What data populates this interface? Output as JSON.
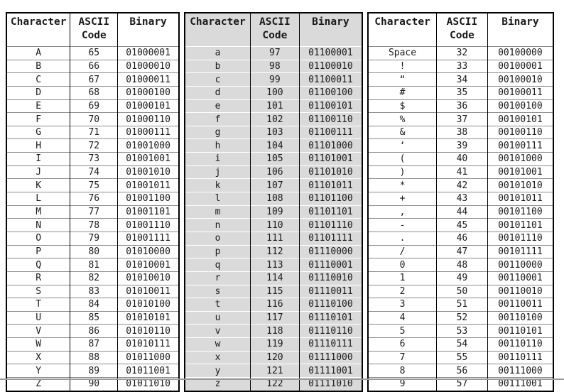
{
  "title": "ASCII code conversion table",
  "headers": {
    "character": "Character",
    "ascii_line1": "ASCII",
    "ascii_line2": "Code",
    "binary": "Binary"
  },
  "colors": {
    "background": "#ffffff",
    "text": "#1a1a1a",
    "table_border": "#000000",
    "row_line": "#8c8c8c",
    "shaded_cell_bg": "#dadada",
    "shaded_row_line": "#ffffff",
    "bottom_rule": "#9a9a9a"
  },
  "sections": [
    {
      "name": "uppercase-letters",
      "shaded": false,
      "rows": [
        [
          "A",
          "65",
          "01000001"
        ],
        [
          "B",
          "66",
          "01000010"
        ],
        [
          "C",
          "67",
          "01000011"
        ],
        [
          "D",
          "68",
          "01000100"
        ],
        [
          "E",
          "69",
          "01000101"
        ],
        [
          "F",
          "70",
          "01000110"
        ],
        [
          "G",
          "71",
          "01000111"
        ],
        [
          "H",
          "72",
          "01001000"
        ],
        [
          "I",
          "73",
          "01001001"
        ],
        [
          "J",
          "74",
          "01001010"
        ],
        [
          "K",
          "75",
          "01001011"
        ],
        [
          "L",
          "76",
          "01001100"
        ],
        [
          "M",
          "77",
          "01001101"
        ],
        [
          "N",
          "78",
          "01001110"
        ],
        [
          "O",
          "79",
          "01001111"
        ],
        [
          "P",
          "80",
          "01010000"
        ],
        [
          "Q",
          "81",
          "01010001"
        ],
        [
          "R",
          "82",
          "01010010"
        ],
        [
          "S",
          "83",
          "01010011"
        ],
        [
          "T",
          "84",
          "01010100"
        ],
        [
          "U",
          "85",
          "01010101"
        ],
        [
          "V",
          "86",
          "01010110"
        ],
        [
          "W",
          "87",
          "01010111"
        ],
        [
          "X",
          "88",
          "01011000"
        ],
        [
          "Y",
          "89",
          "01011001"
        ],
        [
          "Z",
          "90",
          "01011010"
        ]
      ]
    },
    {
      "name": "lowercase-letters",
      "shaded": true,
      "rows": [
        [
          "a",
          "97",
          "01100001"
        ],
        [
          "b",
          "98",
          "01100010"
        ],
        [
          "c",
          "99",
          "01100011"
        ],
        [
          "d",
          "100",
          "01100100"
        ],
        [
          "e",
          "101",
          "01100101"
        ],
        [
          "f",
          "102",
          "01100110"
        ],
        [
          "g",
          "103",
          "01100111"
        ],
        [
          "h",
          "104",
          "01101000"
        ],
        [
          "i",
          "105",
          "01101001"
        ],
        [
          "j",
          "106",
          "01101010"
        ],
        [
          "k",
          "107",
          "01101011"
        ],
        [
          "l",
          "108",
          "01101100"
        ],
        [
          "m",
          "109",
          "01101101"
        ],
        [
          "n",
          "110",
          "01101110"
        ],
        [
          "o",
          "111",
          "01101111"
        ],
        [
          "p",
          "112",
          "01110000"
        ],
        [
          "q",
          "113",
          "01110001"
        ],
        [
          "r",
          "114",
          "01110010"
        ],
        [
          "s",
          "115",
          "01110011"
        ],
        [
          "t",
          "116",
          "01110100"
        ],
        [
          "u",
          "117",
          "01110101"
        ],
        [
          "v",
          "118",
          "01110110"
        ],
        [
          "w",
          "119",
          "01110111"
        ],
        [
          "x",
          "120",
          "01111000"
        ],
        [
          "y",
          "121",
          "01111001"
        ],
        [
          "z",
          "122",
          "01111010"
        ]
      ]
    },
    {
      "name": "symbols-and-digits",
      "shaded": false,
      "rows": [
        [
          "Space",
          "32",
          "00100000"
        ],
        [
          "!",
          "33",
          "00100001"
        ],
        [
          "“",
          "34",
          "00100010"
        ],
        [
          "#",
          "35",
          "00100011"
        ],
        [
          "$",
          "36",
          "00100100"
        ],
        [
          "%",
          "37",
          "00100101"
        ],
        [
          "&",
          "38",
          "00100110"
        ],
        [
          "‘",
          "39",
          "00100111"
        ],
        [
          "(",
          "40",
          "00101000"
        ],
        [
          ")",
          "41",
          "00101001"
        ],
        [
          "*",
          "42",
          "00101010"
        ],
        [
          "+",
          "43",
          "00101011"
        ],
        [
          ",",
          "44",
          "00101100"
        ],
        [
          "-",
          "45",
          "00101101"
        ],
        [
          ".",
          "46",
          "00101110"
        ],
        [
          "/",
          "47",
          "00101111"
        ],
        [
          "0",
          "48",
          "00110000"
        ],
        [
          "1",
          "49",
          "00110001"
        ],
        [
          "2",
          "50",
          "00110010"
        ],
        [
          "3",
          "51",
          "00110011"
        ],
        [
          "4",
          "52",
          "00110100"
        ],
        [
          "5",
          "53",
          "00110101"
        ],
        [
          "6",
          "54",
          "00110110"
        ],
        [
          "7",
          "55",
          "00110111"
        ],
        [
          "8",
          "56",
          "00111000"
        ],
        [
          "9",
          "57",
          "00111001"
        ]
      ]
    }
  ]
}
